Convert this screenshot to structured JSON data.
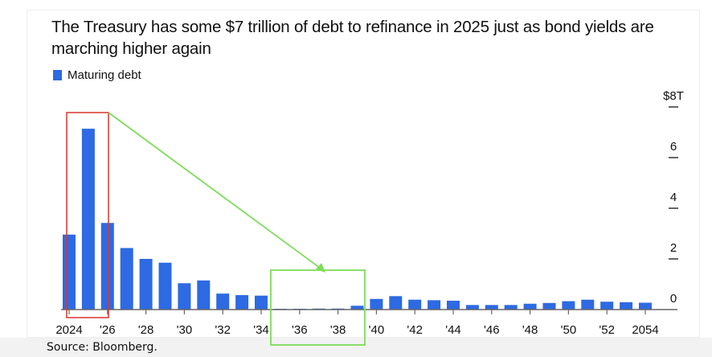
{
  "chart_data": {
    "type": "bar",
    "title": "The Treasury has some $7 trillion of debt to refinance in 2025 just as bond yields are marching higher again",
    "legend": [
      "Maturing debt"
    ],
    "legend_placement": "top-left",
    "xlabel": "",
    "ylabel": "",
    "unit": "$ trillion",
    "ylim": [
      0,
      8
    ],
    "y_ticks": [
      {
        "value": 8,
        "label": "$8T"
      },
      {
        "value": 6,
        "label": "6"
      },
      {
        "value": 4,
        "label": "4"
      },
      {
        "value": 2,
        "label": "2"
      },
      {
        "value": 0,
        "label": "0"
      }
    ],
    "x_ticks": [
      {
        "year": 2024,
        "label": "2024"
      },
      {
        "year": 2026,
        "label": "'26"
      },
      {
        "year": 2028,
        "label": "'28"
      },
      {
        "year": 2030,
        "label": "'30"
      },
      {
        "year": 2032,
        "label": "'32"
      },
      {
        "year": 2034,
        "label": "'34"
      },
      {
        "year": 2036,
        "label": "'36"
      },
      {
        "year": 2038,
        "label": "'38"
      },
      {
        "year": 2040,
        "label": "'40"
      },
      {
        "year": 2042,
        "label": "'42"
      },
      {
        "year": 2044,
        "label": "'44"
      },
      {
        "year": 2046,
        "label": "'46"
      },
      {
        "year": 2048,
        "label": "'48"
      },
      {
        "year": 2050,
        "label": "'50"
      },
      {
        "year": 2052,
        "label": "'52"
      },
      {
        "year": 2054,
        "label": "2054"
      }
    ],
    "categories": [
      2024,
      2025,
      2026,
      2027,
      2028,
      2029,
      2030,
      2031,
      2032,
      2033,
      2034,
      2035,
      2036,
      2037,
      2038,
      2039,
      2040,
      2041,
      2042,
      2043,
      2044,
      2045,
      2046,
      2047,
      2048,
      2049,
      2050,
      2051,
      2052,
      2053,
      2054
    ],
    "series": [
      {
        "name": "Maturing debt",
        "color": "#2d6ae3",
        "values": [
          2.96,
          7.14,
          3.42,
          2.43,
          2.0,
          1.85,
          1.04,
          1.15,
          0.63,
          0.57,
          0.55,
          0.02,
          0.01,
          0.04,
          0.04,
          0.15,
          0.42,
          0.53,
          0.39,
          0.37,
          0.35,
          0.18,
          0.18,
          0.18,
          0.23,
          0.26,
          0.33,
          0.39,
          0.31,
          0.29,
          0.27
        ]
      }
    ],
    "annotations": [
      {
        "type": "box",
        "color": "#d9352b",
        "covers_years": [
          2024,
          2026
        ]
      },
      {
        "type": "box",
        "color": "#7ddc5a",
        "covers_years": [
          2035,
          2039
        ]
      },
      {
        "type": "arrow",
        "color": "#7ddc5a",
        "from": "red box",
        "to": "green box"
      }
    ],
    "source": "Source: Bloomberg."
  }
}
